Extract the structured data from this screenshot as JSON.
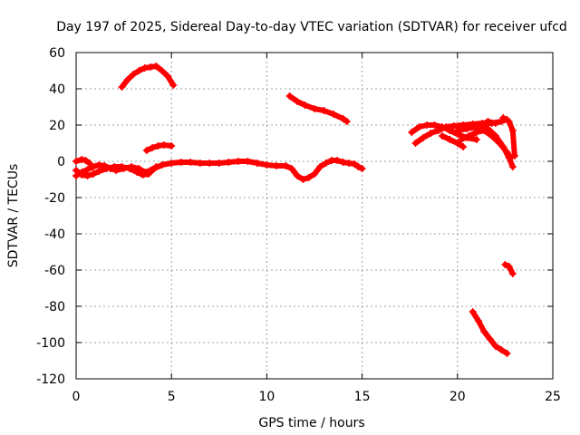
{
  "chart_data": {
    "type": "scatter",
    "title": "Day 197 of 2025, Sidereal Day-to-day VTEC variation (SDTVAR) for receiver ufcd",
    "xlabel": "GPS time / hours",
    "ylabel": "SDTVAR / TECUs",
    "xlim": [
      0,
      25
    ],
    "ylim": [
      -120,
      60
    ],
    "xticks": [
      0,
      5,
      10,
      15,
      20,
      25
    ],
    "yticks": [
      -120,
      -100,
      -80,
      -60,
      -40,
      -20,
      0,
      20,
      40,
      60
    ],
    "grid": true,
    "series_color": "#ff0000",
    "series": [
      {
        "name": "arc-high-early",
        "points": [
          [
            2.4,
            41
          ],
          [
            2.7,
            45
          ],
          [
            3.0,
            48
          ],
          [
            3.3,
            50
          ],
          [
            3.6,
            51.5
          ],
          [
            3.9,
            52
          ],
          [
            4.2,
            52.5
          ],
          [
            4.5,
            50
          ],
          [
            4.8,
            47
          ],
          [
            5.1,
            42
          ]
        ]
      },
      {
        "name": "arc-small-early",
        "points": [
          [
            3.7,
            6
          ],
          [
            4.0,
            7.5
          ],
          [
            4.3,
            8.5
          ],
          [
            4.6,
            9
          ],
          [
            5.0,
            8.5
          ]
        ]
      },
      {
        "name": "arc-main-a",
        "points": [
          [
            0.0,
            -5
          ],
          [
            0.3,
            -7.5
          ],
          [
            0.6,
            -8
          ],
          [
            0.9,
            -7
          ],
          [
            1.2,
            -5.5
          ],
          [
            1.6,
            -4
          ],
          [
            2.0,
            -3
          ],
          [
            2.4,
            -3
          ],
          [
            2.8,
            -4
          ],
          [
            3.2,
            -6
          ],
          [
            3.5,
            -7.5
          ],
          [
            3.8,
            -7
          ],
          [
            4.1,
            -4
          ],
          [
            4.5,
            -2
          ],
          [
            5.0,
            -1
          ],
          [
            5.5,
            -0.5
          ],
          [
            6.0,
            -0.5
          ],
          [
            6.5,
            -1
          ],
          [
            7.0,
            -1
          ],
          [
            7.5,
            -1
          ],
          [
            8.0,
            -0.5
          ],
          [
            8.5,
            0
          ],
          [
            9.0,
            0
          ],
          [
            9.5,
            -1
          ],
          [
            10.0,
            -2
          ],
          [
            10.5,
            -2.5
          ],
          [
            11.0,
            -2.5
          ],
          [
            11.3,
            -4
          ],
          [
            11.6,
            -8
          ],
          [
            11.9,
            -10
          ],
          [
            12.2,
            -9
          ],
          [
            12.5,
            -7
          ],
          [
            12.8,
            -3
          ],
          [
            13.1,
            -1
          ],
          [
            13.4,
            0.5
          ],
          [
            13.7,
            0.5
          ],
          [
            14.0,
            -0.5
          ],
          [
            14.3,
            -1
          ],
          [
            14.6,
            -1.5
          ],
          [
            14.8,
            -3
          ],
          [
            15.0,
            -4
          ]
        ]
      },
      {
        "name": "arc-main-b",
        "points": [
          [
            0.0,
            -8
          ],
          [
            0.3,
            -6
          ],
          [
            0.6,
            -4.5
          ],
          [
            0.9,
            -3
          ],
          [
            1.2,
            -2
          ],
          [
            1.5,
            -2.5
          ],
          [
            1.8,
            -4
          ],
          [
            2.1,
            -5
          ],
          [
            2.5,
            -4
          ],
          [
            2.9,
            -3
          ],
          [
            3.3,
            -4
          ],
          [
            3.6,
            -6
          ],
          [
            3.9,
            -5
          ],
          [
            4.2,
            -3
          ]
        ]
      },
      {
        "name": "arc-start",
        "points": [
          [
            0.0,
            0
          ],
          [
            0.3,
            1
          ],
          [
            0.5,
            0.5
          ],
          [
            0.7,
            -1
          ]
        ]
      },
      {
        "name": "arc-mid-decline",
        "points": [
          [
            11.2,
            36
          ],
          [
            11.6,
            33
          ],
          [
            12.0,
            31
          ],
          [
            12.5,
            29
          ],
          [
            13.0,
            28
          ],
          [
            13.5,
            26
          ],
          [
            14.0,
            23.5
          ],
          [
            14.2,
            22
          ]
        ]
      },
      {
        "name": "arc-late-a",
        "points": [
          [
            17.6,
            16
          ],
          [
            18.0,
            19
          ],
          [
            18.4,
            20
          ],
          [
            18.8,
            20
          ],
          [
            19.2,
            19
          ],
          [
            19.6,
            17
          ],
          [
            20.0,
            15
          ],
          [
            20.5,
            13
          ],
          [
            21.0,
            12
          ]
        ]
      },
      {
        "name": "arc-late-b",
        "points": [
          [
            17.8,
            10
          ],
          [
            18.2,
            13
          ],
          [
            18.6,
            15.5
          ],
          [
            19.0,
            17
          ],
          [
            19.4,
            19
          ],
          [
            19.8,
            19.5
          ],
          [
            20.3,
            20
          ],
          [
            20.8,
            20.5
          ],
          [
            21.3,
            21
          ],
          [
            21.8,
            21
          ],
          [
            22.3,
            22
          ],
          [
            22.6,
            23
          ]
        ]
      },
      {
        "name": "arc-late-c",
        "points": [
          [
            19.2,
            14
          ],
          [
            19.6,
            12
          ],
          [
            20.0,
            10
          ],
          [
            20.3,
            8
          ]
        ]
      },
      {
        "name": "arc-late-d",
        "points": [
          [
            20.0,
            17
          ],
          [
            20.5,
            18
          ],
          [
            21.0,
            19
          ],
          [
            21.3,
            19
          ],
          [
            21.6,
            18
          ],
          [
            22.0,
            14
          ],
          [
            22.4,
            8
          ],
          [
            22.7,
            2
          ],
          [
            22.9,
            -3
          ]
        ]
      },
      {
        "name": "arc-late-e",
        "points": [
          [
            20.2,
            12
          ],
          [
            20.6,
            14
          ],
          [
            21.0,
            16
          ],
          [
            21.4,
            17
          ],
          [
            21.8,
            14
          ],
          [
            22.2,
            10
          ],
          [
            22.6,
            5
          ],
          [
            22.8,
            2
          ]
        ]
      },
      {
        "name": "arc-late-f",
        "points": [
          [
            22.4,
            24
          ],
          [
            22.7,
            22
          ],
          [
            22.9,
            17
          ],
          [
            23.0,
            3
          ]
        ]
      },
      {
        "name": "arc-late-short",
        "points": [
          [
            20.8,
            19
          ],
          [
            21.2,
            20
          ],
          [
            21.6,
            22
          ],
          [
            22.0,
            21
          ]
        ]
      },
      {
        "name": "arc-drop",
        "points": [
          [
            20.8,
            -83
          ],
          [
            21.1,
            -88
          ],
          [
            21.4,
            -94
          ],
          [
            21.7,
            -98
          ],
          [
            22.0,
            -102
          ],
          [
            22.3,
            -104
          ],
          [
            22.6,
            -106
          ]
        ]
      },
      {
        "name": "arc-late-small",
        "points": [
          [
            22.5,
            -57
          ],
          [
            22.7,
            -58
          ],
          [
            22.9,
            -62
          ]
        ]
      }
    ]
  }
}
